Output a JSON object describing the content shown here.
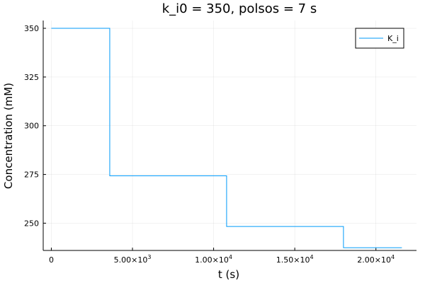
{
  "chart_data": {
    "type": "line",
    "title": "k_i0 = 350, polsos = 7 s",
    "xlabel": "t (s)",
    "ylabel": "Concentration (mM)",
    "xlim": [
      -500,
      22500
    ],
    "ylim": [
      236,
      354
    ],
    "grid": true,
    "legend_position": "top-right",
    "x_ticks": [
      {
        "value": 0,
        "label": "0",
        "exp": ""
      },
      {
        "value": 5000,
        "label": "5.00×10",
        "exp": "3"
      },
      {
        "value": 10000,
        "label": "1.00×10",
        "exp": "4"
      },
      {
        "value": 15000,
        "label": "1.50×10",
        "exp": "4"
      },
      {
        "value": 20000,
        "label": "2.00×10",
        "exp": "4"
      }
    ],
    "y_ticks": [
      {
        "value": 250,
        "label": "250"
      },
      {
        "value": 275,
        "label": "275"
      },
      {
        "value": 300,
        "label": "300"
      },
      {
        "value": 325,
        "label": "325"
      },
      {
        "value": 350,
        "label": "350"
      }
    ],
    "series": [
      {
        "name": "K_i",
        "color": "#009AFA",
        "step": true,
        "x": [
          0,
          3600,
          10800,
          18000,
          21600
        ],
        "y": [
          350,
          274.3,
          248.3,
          237.4,
          237.4
        ]
      }
    ]
  }
}
